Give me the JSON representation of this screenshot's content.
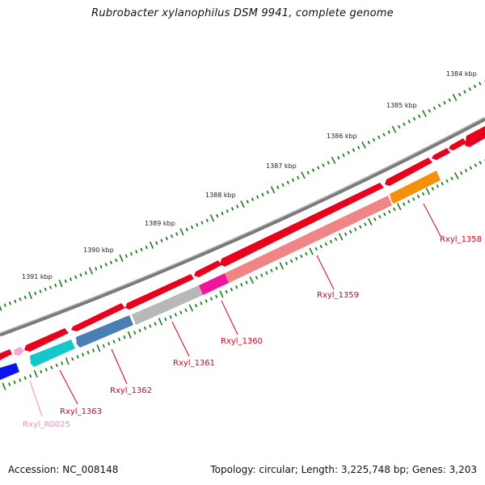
{
  "title": "Rubrobacter xylanophilus DSM 9941, complete genome",
  "footer": {
    "accession": "Accession: NC_008148",
    "topology": "Topology: circular; Length: 3,225,748 bp; Genes: 3,203"
  },
  "colors": {
    "backbone": "#7a7a7a",
    "tick": "#1e7a1e",
    "forward_gene": "#e8001c",
    "label_red": "#d6001c",
    "label_pink": "#f08ab4"
  },
  "ruler": [
    {
      "label": "1384 kbp"
    },
    {
      "label": "1385 kbp"
    },
    {
      "label": "1386 kbp"
    },
    {
      "label": "1387 kbp"
    },
    {
      "label": "1388 kbp"
    },
    {
      "label": "1389 kbp"
    },
    {
      "label": "1390 kbp"
    },
    {
      "label": "1391 kbp"
    }
  ],
  "genes": [
    {
      "label": "Rxyl_1358",
      "color": "#f5900a"
    },
    {
      "label": "Rxyl_1359",
      "color": "#f08585"
    },
    {
      "label": "Rxyl_1360",
      "color": "#f0159a"
    },
    {
      "label": "Rxyl_1361",
      "color": "#b8b8b8"
    },
    {
      "label": "Rxyl_1362",
      "color": "#4a7fb5"
    },
    {
      "label": "Rxyl_1363",
      "color": "#14c8c8"
    },
    {
      "label": "Rxyl_R0025",
      "color": "#f7a8d0"
    }
  ]
}
